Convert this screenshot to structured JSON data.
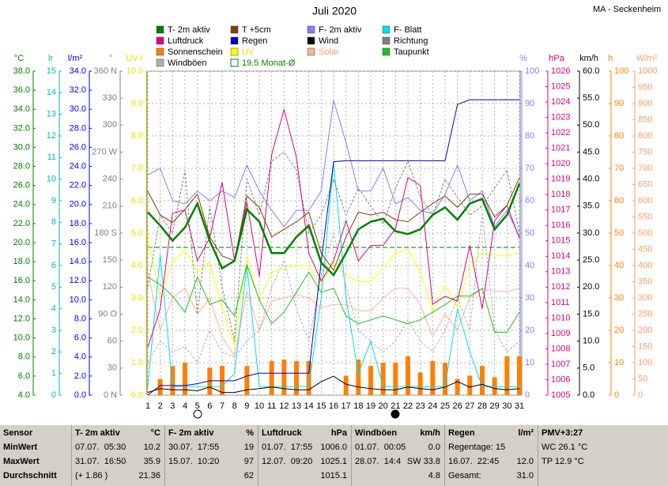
{
  "chart_data": {
    "type": "line",
    "title": "Juli 2020",
    "station": "MA - Seckenheim",
    "categories": [
      "1",
      "2",
      "3",
      "4",
      "5",
      "6",
      "7",
      "8",
      "9",
      "10",
      "11",
      "12",
      "13",
      "14",
      "15",
      "16",
      "17",
      "18",
      "19",
      "20",
      "21",
      "22",
      "23",
      "24",
      "25",
      "26",
      "27",
      "28",
      "29",
      "30",
      "31"
    ],
    "grid": true,
    "axes": [
      {
        "label": "°C",
        "color": "#008000",
        "side": "left",
        "lim": [
          4,
          38
        ],
        "ticks": [
          {
            "value": 38,
            "label": "38.0"
          },
          {
            "value": 36,
            "label": "36.0"
          },
          {
            "value": 34,
            "label": "34.0"
          },
          {
            "value": 32,
            "label": "32.0"
          },
          {
            "value": 30,
            "label": "30.0"
          },
          {
            "value": 28,
            "label": "28.0"
          },
          {
            "value": 26,
            "label": "26.0"
          },
          {
            "value": 24,
            "label": "24.0"
          },
          {
            "value": 22,
            "label": "22.0"
          },
          {
            "value": 20,
            "label": "20.0"
          },
          {
            "value": 18,
            "label": "18.0"
          },
          {
            "value": 16,
            "label": "16.0"
          },
          {
            "value": 14,
            "label": "14.0"
          },
          {
            "value": 12,
            "label": "12.0"
          },
          {
            "value": 10,
            "label": "10.0"
          },
          {
            "value": 8,
            "label": "8.0"
          },
          {
            "value": 6,
            "label": "6.0"
          },
          {
            "value": 4,
            "label": "4.0"
          }
        ]
      },
      {
        "label": "lr",
        "color": "#00b8c0",
        "side": "left",
        "lim": [
          0,
          15
        ],
        "ticks": [
          15,
          14,
          13,
          12,
          11,
          10,
          9,
          8,
          7,
          6,
          5,
          4,
          3,
          2,
          1,
          0
        ]
      },
      {
        "label": "l/m²",
        "color": "#0000ff",
        "side": "left",
        "lim": [
          0,
          34
        ],
        "ticks": [
          {
            "value": 34,
            "label": "34.0"
          },
          {
            "value": 32,
            "label": "32.0"
          },
          {
            "value": 30,
            "label": "30.0"
          },
          {
            "value": 28,
            "label": "28.0"
          },
          {
            "value": 26,
            "label": "26.0"
          },
          {
            "value": 24,
            "label": "24.0"
          },
          {
            "value": 22,
            "label": "22.0"
          },
          {
            "value": 20,
            "label": "20.0"
          },
          {
            "value": 18,
            "label": "18.0"
          },
          {
            "value": 16,
            "label": "16.0"
          },
          {
            "value": 14,
            "label": "14.0"
          },
          {
            "value": 12,
            "label": "12.0"
          },
          {
            "value": 10,
            "label": "10.0"
          },
          {
            "value": 8,
            "label": "8.0"
          },
          {
            "value": 6,
            "label": "6.0"
          },
          {
            "value": 4,
            "label": "4.0"
          },
          {
            "value": 2,
            "label": "2.0"
          },
          {
            "value": 0,
            "label": "0.0"
          }
        ]
      },
      {
        "label": "°",
        "color": "#808080",
        "side": "left",
        "lim": [
          0,
          360
        ],
        "ticks": [
          {
            "value": 360,
            "label": "360 N"
          },
          330,
          300,
          {
            "value": 270,
            "label": "270 W"
          },
          240,
          210,
          {
            "value": 180,
            "label": "180 S"
          },
          150,
          120,
          {
            "value": 90,
            "label": "90 O"
          },
          60,
          30,
          {
            "value": 0,
            "label": "0 N"
          }
        ]
      },
      {
        "label": "UV-I",
        "color": "#e8e000",
        "side": "left",
        "lim": [
          0,
          10
        ],
        "ticks": [
          {
            "value": 10,
            "label": "10.0"
          },
          {
            "value": 9,
            "label": "9.0"
          },
          {
            "value": 8,
            "label": "8.0"
          },
          {
            "value": 7,
            "label": "7.0"
          },
          {
            "value": 6,
            "label": "6.0"
          },
          {
            "value": 5,
            "label": "5.0"
          },
          {
            "value": 4,
            "label": "4.0"
          },
          {
            "value": 3,
            "label": "3.0"
          },
          {
            "value": 2,
            "label": "2.0"
          },
          {
            "value": 1,
            "label": "1.0"
          },
          {
            "value": 0,
            "label": "0.0"
          }
        ]
      },
      {
        "label": "%",
        "color": "#8080ff",
        "side": "right",
        "lim": [
          0,
          100
        ],
        "ticks": [
          100,
          90,
          80,
          70,
          60,
          50,
          40,
          30,
          20,
          10,
          0
        ]
      },
      {
        "label": "hPa",
        "color": "#e0007f",
        "side": "right",
        "lim": [
          1005,
          1026
        ],
        "ticks": [
          1026,
          1025,
          1024,
          1023,
          1022,
          1021,
          1020,
          1019,
          1018,
          1017,
          1016,
          1015,
          1014,
          1013,
          1012,
          1011,
          1010,
          1009,
          1008,
          1007,
          1006,
          1005
        ]
      },
      {
        "label": "km/h",
        "color": "#000000",
        "side": "right",
        "lim": [
          0,
          60
        ],
        "ticks": [
          {
            "value": 60,
            "label": "60.0"
          },
          {
            "value": 55,
            "label": "55.0"
          },
          {
            "value": 50,
            "label": "50.0"
          },
          {
            "value": 45,
            "label": "45.0"
          },
          {
            "value": 40,
            "label": "40.0"
          },
          {
            "value": 35,
            "label": "35.0"
          },
          {
            "value": 30,
            "label": "30.0"
          },
          {
            "value": 25,
            "label": "25.0"
          },
          {
            "value": 20,
            "label": "20.0"
          },
          {
            "value": 15,
            "label": "15.0"
          },
          {
            "value": 10,
            "label": "10.0"
          },
          {
            "value": 5,
            "label": "5.0"
          },
          {
            "value": 0,
            "label": "0.0"
          }
        ]
      },
      {
        "label": "h",
        "color": "#ff8000",
        "side": "right",
        "lim": [
          0,
          100
        ],
        "ticks": [
          100,
          90,
          80,
          70,
          60,
          50,
          40,
          30,
          20,
          10,
          0
        ]
      },
      {
        "label": "W/m²",
        "color": "#ff9966",
        "side": "right",
        "lim": [
          0,
          1000
        ],
        "ticks": [
          1000,
          950,
          900,
          850,
          800,
          750,
          700,
          650,
          600,
          550,
          500,
          450,
          400,
          350,
          300,
          250,
          200,
          150,
          100,
          50,
          0
        ]
      }
    ],
    "series": [
      {
        "name": "T- 2m aktiv",
        "color": "#008000",
        "axis": 0,
        "values": [
          23.2,
          21.8,
          20.2,
          21.6,
          24.1,
          20.2,
          17.3,
          18.1,
          23.5,
          22.2,
          18.9,
          18.9,
          20.6,
          21.8,
          17.9,
          16.6,
          18.9,
          21.4,
          22.2,
          22.5,
          21.2,
          20.9,
          21.4,
          22.9,
          23.7,
          22.4,
          24.1,
          24.6,
          21.4,
          22.9,
          26.2
        ]
      },
      {
        "name": "T +5cm",
        "color": "#804000",
        "axis": 0,
        "values": [
          25.4,
          22.9,
          22.1,
          23.5,
          25.1,
          20.6,
          18.6,
          18.1,
          24.9,
          23.7,
          20.6,
          21.4,
          22.2,
          23.2,
          18.9,
          17.1,
          20.6,
          23.2,
          22.9,
          23.2,
          22.4,
          22.2,
          23.2,
          24.1,
          24.9,
          23.7,
          25.1,
          25.1,
          22.7,
          23.9,
          26.8
        ]
      },
      {
        "name": "F- 2m aktiv",
        "color": "#8080ff",
        "axis": 5,
        "values": [
          68,
          70,
          60,
          59,
          63,
          60,
          63,
          61,
          71,
          63,
          57,
          52,
          57,
          57,
          63,
          91,
          78,
          63,
          63,
          70,
          59,
          61,
          57,
          56,
          62,
          71,
          60,
          63,
          52,
          57,
          49
        ]
      },
      {
        "name": "F- Blatt",
        "color": "#00e0e8",
        "axis": 1,
        "values": [
          0.4,
          6.5,
          0.4,
          0.4,
          0.4,
          0.4,
          0.4,
          1.0,
          6.0,
          0.4,
          0.4,
          0.4,
          0.4,
          0.4,
          4.5,
          10.8,
          4.5,
          1.0,
          2.5,
          0.4,
          0.4,
          0.4,
          0.4,
          0.4,
          0.4,
          4.0,
          2.0,
          0.4,
          0.4,
          0.4,
          0.4
        ]
      },
      {
        "name": "Luftdruck",
        "color": "#e0007f",
        "axis": 6,
        "values": [
          1008.1,
          1010.6,
          1016.8,
          1017.0,
          1013.7,
          1015.2,
          1018.8,
          1013.7,
          1017.5,
          1012.7,
          1020.6,
          1023.5,
          1020.4,
          1014.2,
          1012.4,
          1013.7,
          1016.3,
          1013.7,
          1014.7,
          1014.7,
          1015.8,
          1019.1,
          1018.6,
          1010.9,
          1011.4,
          1011.1,
          1014.7,
          1010.6,
          1016.3,
          1017.3,
          1015.2
        ]
      },
      {
        "name": "Regen",
        "color": "#0000c0",
        "axis": 2,
        "values": [
          0,
          1.0,
          1.0,
          1.0,
          1.2,
          1.5,
          1.5,
          1.5,
          2.0,
          2.3,
          2.3,
          2.3,
          2.3,
          2.3,
          14.0,
          24.5,
          24.6,
          24.6,
          24.6,
          24.6,
          24.6,
          24.6,
          24.6,
          24.6,
          24.6,
          30.5,
          31.0,
          31.0,
          31.0,
          31.0,
          31.0
        ]
      },
      {
        "name": "Wind",
        "color": "#000000",
        "axis": 7,
        "values": [
          0.5,
          1.2,
          1.0,
          1.0,
          0.8,
          1.5,
          0.5,
          0.5,
          1.0,
          1.2,
          1.5,
          1.2,
          1.0,
          1.0,
          2.5,
          3.5,
          2.0,
          1.5,
          1.2,
          1.0,
          1.0,
          1.5,
          1.2,
          1.0,
          1.5,
          2.5,
          1.5,
          2.0,
          1.2,
          1.0,
          1.2
        ]
      },
      {
        "name": "Richtung",
        "color": "#808080",
        "axis": 3,
        "dashed": true,
        "values": [
          120,
          200,
          180,
          250,
          90,
          210,
          120,
          60,
          240,
          200,
          260,
          270,
          250,
          180,
          200,
          240,
          200,
          230,
          210,
          190,
          230,
          260,
          220,
          200,
          240,
          220,
          200,
          210,
          230,
          250,
          180
        ]
      },
      {
        "name": "Sonnenschein",
        "color": "#ff8000",
        "axis": 8,
        "style": "bar",
        "values": [
          0,
          5,
          9,
          10,
          0,
          8.5,
          9,
          0,
          9,
          0,
          10.5,
          11,
          10.5,
          10.5,
          0,
          0,
          6,
          11,
          9,
          10,
          10,
          12,
          7,
          10.5,
          10,
          5,
          6,
          9,
          5.5,
          12,
          12
        ]
      },
      {
        "name": "UV",
        "color": "#ffff00",
        "text_color": "#e8e000",
        "axis": 4,
        "values": [
          4.9,
          3.0,
          4.1,
          4.5,
          3.8,
          4.1,
          2.7,
          1.5,
          4.3,
          2.9,
          3.8,
          3.9,
          4.0,
          4.0,
          3.4,
          4.1,
          3.7,
          3.5,
          3.5,
          3.9,
          4.4,
          4.5,
          3.8,
          2.6,
          3.4,
          2.7,
          4.0,
          4.4,
          4.3,
          4.3,
          4.4
        ]
      },
      {
        "name": "Solar",
        "color": "#ffb090",
        "text_color": "#ff9966",
        "axis": 9,
        "values": [
          380,
          200,
          300,
          330,
          250,
          300,
          180,
          120,
          320,
          200,
          290,
          300,
          310,
          300,
          270,
          280,
          280,
          260,
          260,
          300,
          330,
          330,
          280,
          180,
          250,
          200,
          300,
          330,
          320,
          320,
          330
        ]
      },
      {
        "name": "Taupunkt",
        "color": "#20c020",
        "axis": 0,
        "values": [
          16.4,
          15.6,
          14.4,
          12.7,
          16.4,
          13.5,
          14.0,
          12.3,
          17.7,
          14.0,
          11.5,
          12.7,
          14.8,
          16.9,
          14.8,
          15.2,
          12.3,
          11.5,
          11.9,
          12.3,
          11.9,
          11.5,
          11.9,
          12.7,
          13.5,
          14.4,
          14.4,
          15.2,
          10.6,
          10.6,
          12.7
        ]
      },
      {
        "name": "Windböen",
        "color": "#b0b0b0",
        "axis": 7,
        "dashed": true,
        "values": [
          6,
          10,
          8,
          9,
          6,
          12,
          8,
          7,
          10,
          12,
          20,
          25,
          16,
          10,
          22,
          30,
          20,
          12,
          10,
          8,
          10,
          14,
          10,
          8,
          12,
          18,
          12,
          33.8,
          12,
          8,
          10
        ]
      }
    ],
    "monthly_mean": {
      "value": 19.5,
      "label": "19.5 Monat-Ø",
      "color": "#008000",
      "axis": 0
    }
  },
  "stats": {
    "header": "Sensor",
    "row_labels": [
      "MinWert",
      "MaxWert",
      "Durchschnitt"
    ],
    "columns": [
      {
        "name": "T- 2m aktiv",
        "unit": "°C",
        "cells": [
          {
            "left": "07.07.  05:30",
            "right": "10.2"
          },
          {
            "left": "31.07.  16:50",
            "right": "35.9"
          },
          {
            "left": "(+ 1.86 )",
            "right": "21.36"
          }
        ]
      },
      {
        "name": "F- 2m aktiv",
        "unit": "%",
        "cells": [
          {
            "left": "30.07.  17:55",
            "right": "19"
          },
          {
            "left": "15.07.  10:20",
            "right": "97"
          },
          {
            "right": "62"
          }
        ]
      },
      {
        "name": "Luftdruck",
        "unit": "hPa",
        "cells": [
          {
            "left": "01.07.  17:55",
            "right": "1006.0"
          },
          {
            "left": "12.07.  09:20",
            "right": "1025.1"
          },
          {
            "right": "1015.1"
          }
        ]
      },
      {
        "name": "Windböen",
        "unit": "km/h",
        "cells": [
          {
            "left": "01.07.  00:05",
            "right": "0.0"
          },
          {
            "left": "28.07.  14:4",
            "right": "SW 33.8"
          },
          {
            "right": "4.8"
          }
        ]
      },
      {
        "name": "Regen",
        "unit": "l/m²",
        "cells": [
          {
            "left": "Regentage: 15"
          },
          {
            "left": "16.07.  22:45",
            "right": "12.0"
          },
          {
            "left": "Gesamt:",
            "right": "31.0"
          }
        ]
      },
      {
        "name": "PMV+3:27",
        "cells": [
          {
            "left": "WC 26.1 °C"
          },
          {
            "left": "TP 12.9 °C"
          }
        ]
      }
    ]
  }
}
